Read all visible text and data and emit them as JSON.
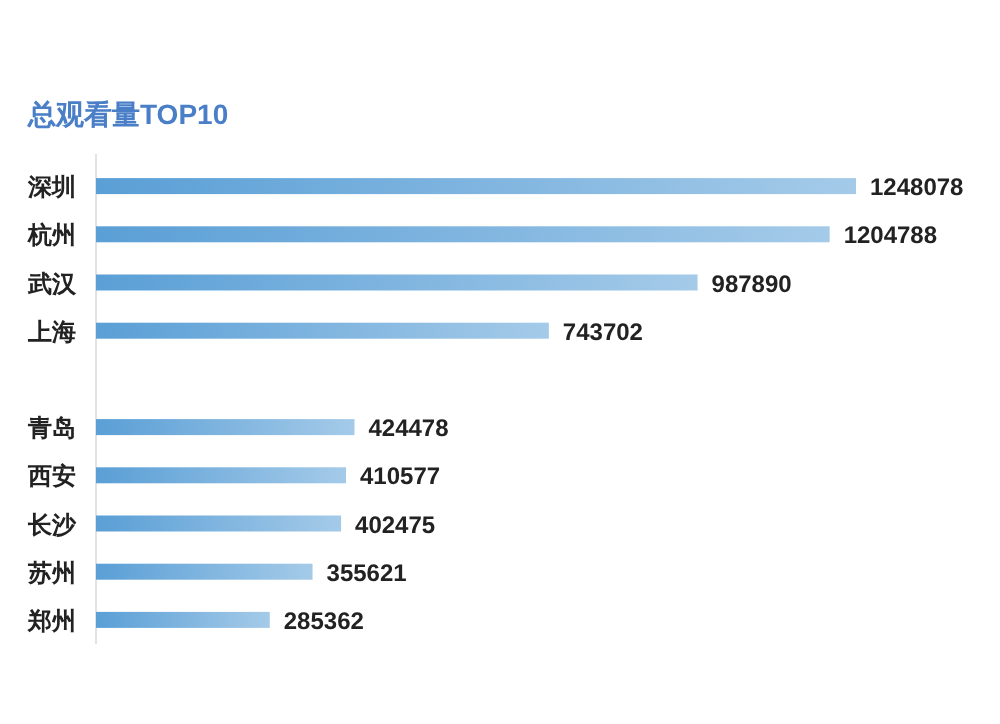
{
  "chart_data": {
    "type": "bar",
    "orientation": "horizontal",
    "title": "总观看量TOP10",
    "categories": [
      "深圳",
      "杭州",
      "武汉",
      "上海",
      null,
      "青岛",
      "西安",
      "长沙",
      "苏州",
      "郑州"
    ],
    "values": [
      1248078,
      1204788,
      987890,
      743702,
      null,
      424478,
      410577,
      402475,
      355621,
      285362
    ],
    "color": "#5a9fd6",
    "data_labels": true
  }
}
